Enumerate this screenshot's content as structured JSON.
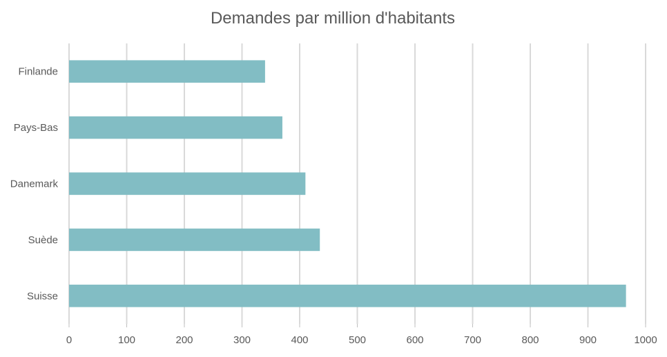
{
  "chart_data": {
    "type": "bar",
    "orientation": "horizontal",
    "title": "Demandes par million d'habitants",
    "categories": [
      "Finlande",
      "Pays-Bas",
      "Danemark",
      "Suède",
      "Suisse"
    ],
    "values": [
      340,
      370,
      410,
      435,
      966
    ],
    "xlabel": "",
    "ylabel": "",
    "xlim": [
      0,
      1000
    ],
    "xticks": [
      0,
      100,
      200,
      300,
      400,
      500,
      600,
      700,
      800,
      900,
      1000
    ],
    "grid": true,
    "legend": "none",
    "bar_color": "#82bdc4"
  }
}
